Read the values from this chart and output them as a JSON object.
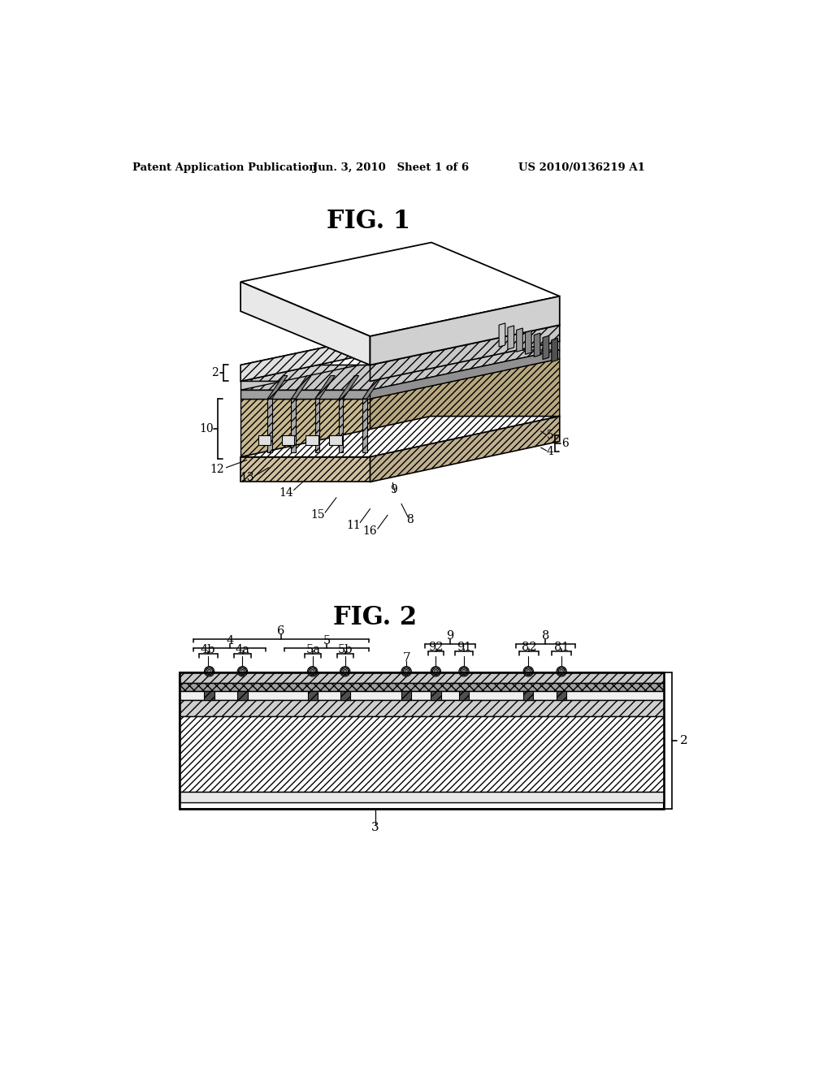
{
  "bg_color": "#ffffff",
  "header_left": "Patent Application Publication",
  "header_mid": "Jun. 3, 2010   Sheet 1 of 6",
  "header_right": "US 2010/0136219 A1",
  "fig1_title": "FIG. 1",
  "fig2_title": "FIG. 2",
  "line_color": "#000000",
  "light_gray": "#cccccc",
  "mid_gray": "#999999",
  "dark_gray": "#555555",
  "white": "#ffffff",
  "near_white": "#f0f0f0"
}
